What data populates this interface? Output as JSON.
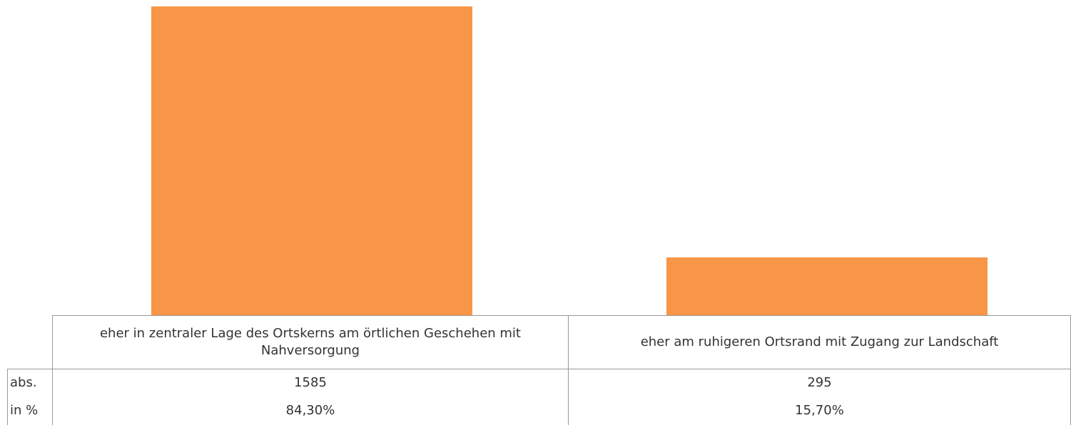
{
  "chart_data": {
    "type": "bar",
    "categories": [
      "eher in zentraler Lage des Ortskerns am örtlichen Geschehen mit Nahversorgung",
      "eher am ruhigeren Ortsrand mit Zugang zur Landschaft"
    ],
    "series": [
      {
        "name": "abs.",
        "color": "#f79646",
        "values": [
          1585,
          295
        ]
      }
    ],
    "percent": {
      "name": "in %",
      "values": [
        84.3,
        15.7
      ],
      "value_labels": [
        "84,30%",
        "15,70%"
      ]
    }
  }
}
